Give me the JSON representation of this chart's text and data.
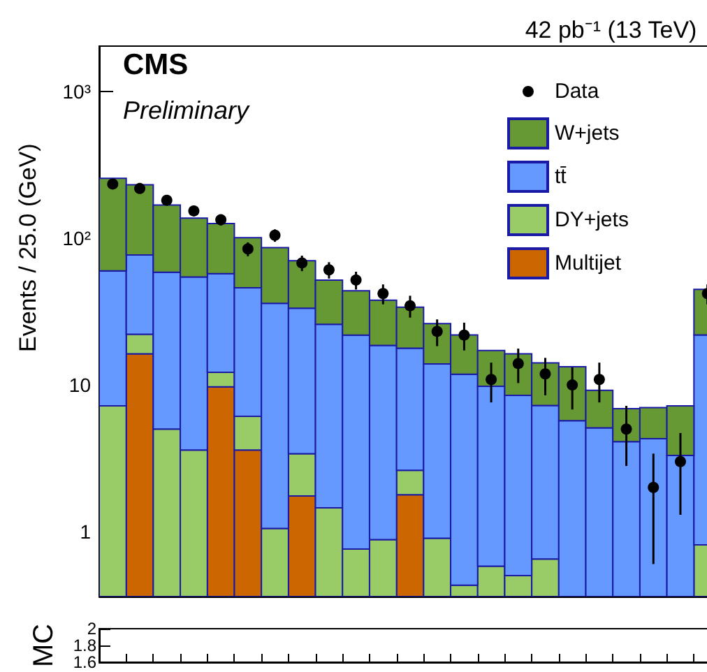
{
  "chart_data": [
    {
      "type": "bar",
      "title": "42 pb⁻¹ (13 TeV)",
      "ylabel": "Events / 25.0 (GeV)",
      "annotations": [
        "CMS",
        "Preliminary"
      ],
      "categories": [
        null,
        null,
        null,
        null,
        null,
        null,
        null,
        null,
        null,
        null,
        null,
        null,
        null,
        null,
        null,
        null,
        null,
        null,
        null,
        null,
        null,
        null,
        null
      ],
      "stacked": true,
      "log": true,
      "legend": "top right",
      "tick_labels": "y",
      "marker": "circle",
      "ylim": [
        0.36,
        2050
      ],
      "yticks": [
        1,
        10,
        {
          "value": 100,
          "label": "10²"
        },
        {
          "value": 1000,
          "label": "10³"
        }
      ],
      "series": [
        {
          "name": "Data",
          "type": "scatter",
          "color": "#000000",
          "values": [
            235,
            219,
            182,
            154,
            134,
            84.7,
            105,
            68,
            61,
            52,
            42,
            34.7,
            23.2,
            21.9,
            10.9,
            14.0,
            11.9,
            10.0,
            10.9,
            5.0,
            2.0,
            3.0,
            42
          ],
          "errors": [
            15.3,
            14.8,
            13.5,
            12.4,
            11.6,
            9.2,
            10.2,
            8.2,
            7.8,
            7.2,
            6.5,
            5.9,
            4.8,
            4.7,
            3.3,
            3.7,
            3.4,
            3.2,
            3.3,
            2.2,
            1.4,
            1.7,
            6.5
          ]
        },
        {
          "name": "Multijet",
          "color": "#cc6600",
          "values": [
            null,
            16.3,
            null,
            null,
            9.7,
            3.6,
            null,
            1.75,
            null,
            null,
            null,
            1.78,
            null,
            null,
            null,
            null,
            null,
            null,
            null,
            null,
            null,
            null,
            null
          ]
        },
        {
          "name": "DY+jets",
          "color": "#99cc66",
          "values": [
            7.2,
            5.9,
            5.0,
            3.6,
            2.5,
            2.5,
            1.05,
            1.65,
            1.45,
            0.76,
            0.88,
            0.84,
            0.9,
            0.43,
            0.58,
            0.5,
            0.65,
            null,
            null,
            null,
            null,
            null,
            0.81
          ]
        },
        {
          "name": "tt̄",
          "color": "#6699ff",
          "values": [
            52.8,
            54.8,
            53.7,
            51.0,
            45.2,
            39.9,
            35.0,
            30.0,
            24.5,
            21.1,
            17.7,
            15.2,
            13.0,
            11.4,
            9.2,
            8.0,
            6.6,
            5.7,
            5.1,
            4.1,
            4.3,
            3.3,
            21.1
          ]
        },
        {
          "name": "W+jets",
          "color": "#669933",
          "values": [
            197,
            155,
            110,
            83,
            69,
            55,
            50.5,
            37.0,
            25.9,
            22.0,
            19.3,
            16.1,
            12.3,
            10.1,
            7.4,
            7.8,
            6.9,
            7.6,
            4.1,
            2.8,
            2.7,
            3.9,
            23
          ]
        }
      ]
    },
    {
      "type": "line",
      "ylabel": "MC",
      "tick_labels": "y",
      "categories": [
        null,
        null,
        null,
        null,
        null,
        null,
        null,
        null,
        null,
        null,
        null,
        null,
        null,
        null,
        null,
        null,
        null,
        null,
        null,
        null,
        null,
        null,
        null
      ],
      "ylim": [
        1.6,
        2
      ],
      "yticks": [
        1.6,
        1.8,
        2
      ],
      "series": [
        {
          "color": "#000000",
          "values": [
            null,
            null,
            null,
            null,
            null,
            null,
            null,
            null,
            null,
            null,
            null,
            null,
            null,
            null,
            null,
            null,
            null,
            null,
            null,
            null,
            null,
            null,
            null
          ]
        }
      ]
    }
  ]
}
